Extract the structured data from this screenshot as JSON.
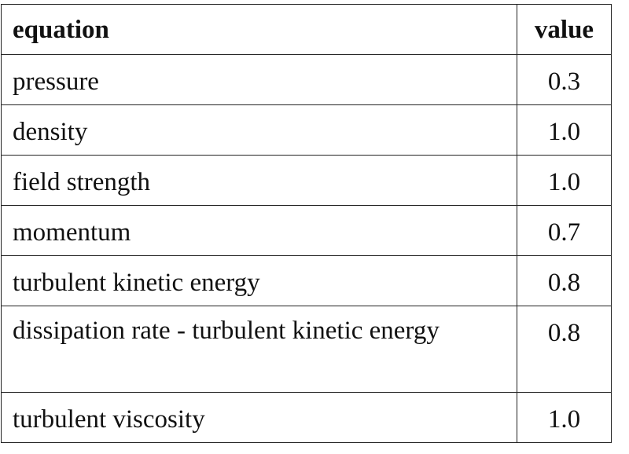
{
  "table": {
    "headers": {
      "equation": "equation",
      "value": "value"
    },
    "rows": [
      {
        "equation": "pressure",
        "value": "0.3"
      },
      {
        "equation": "density",
        "value": "1.0"
      },
      {
        "equation": "field strength",
        "value": "1.0"
      },
      {
        "equation": "momentum",
        "value": "0.7"
      },
      {
        "equation": "turbulent kinetic energy",
        "value": "0.8"
      },
      {
        "equation": "dissipation rate - turbulent kinetic energy",
        "value": "0.8"
      },
      {
        "equation": "turbulent viscosity",
        "value": "1.0"
      }
    ]
  }
}
